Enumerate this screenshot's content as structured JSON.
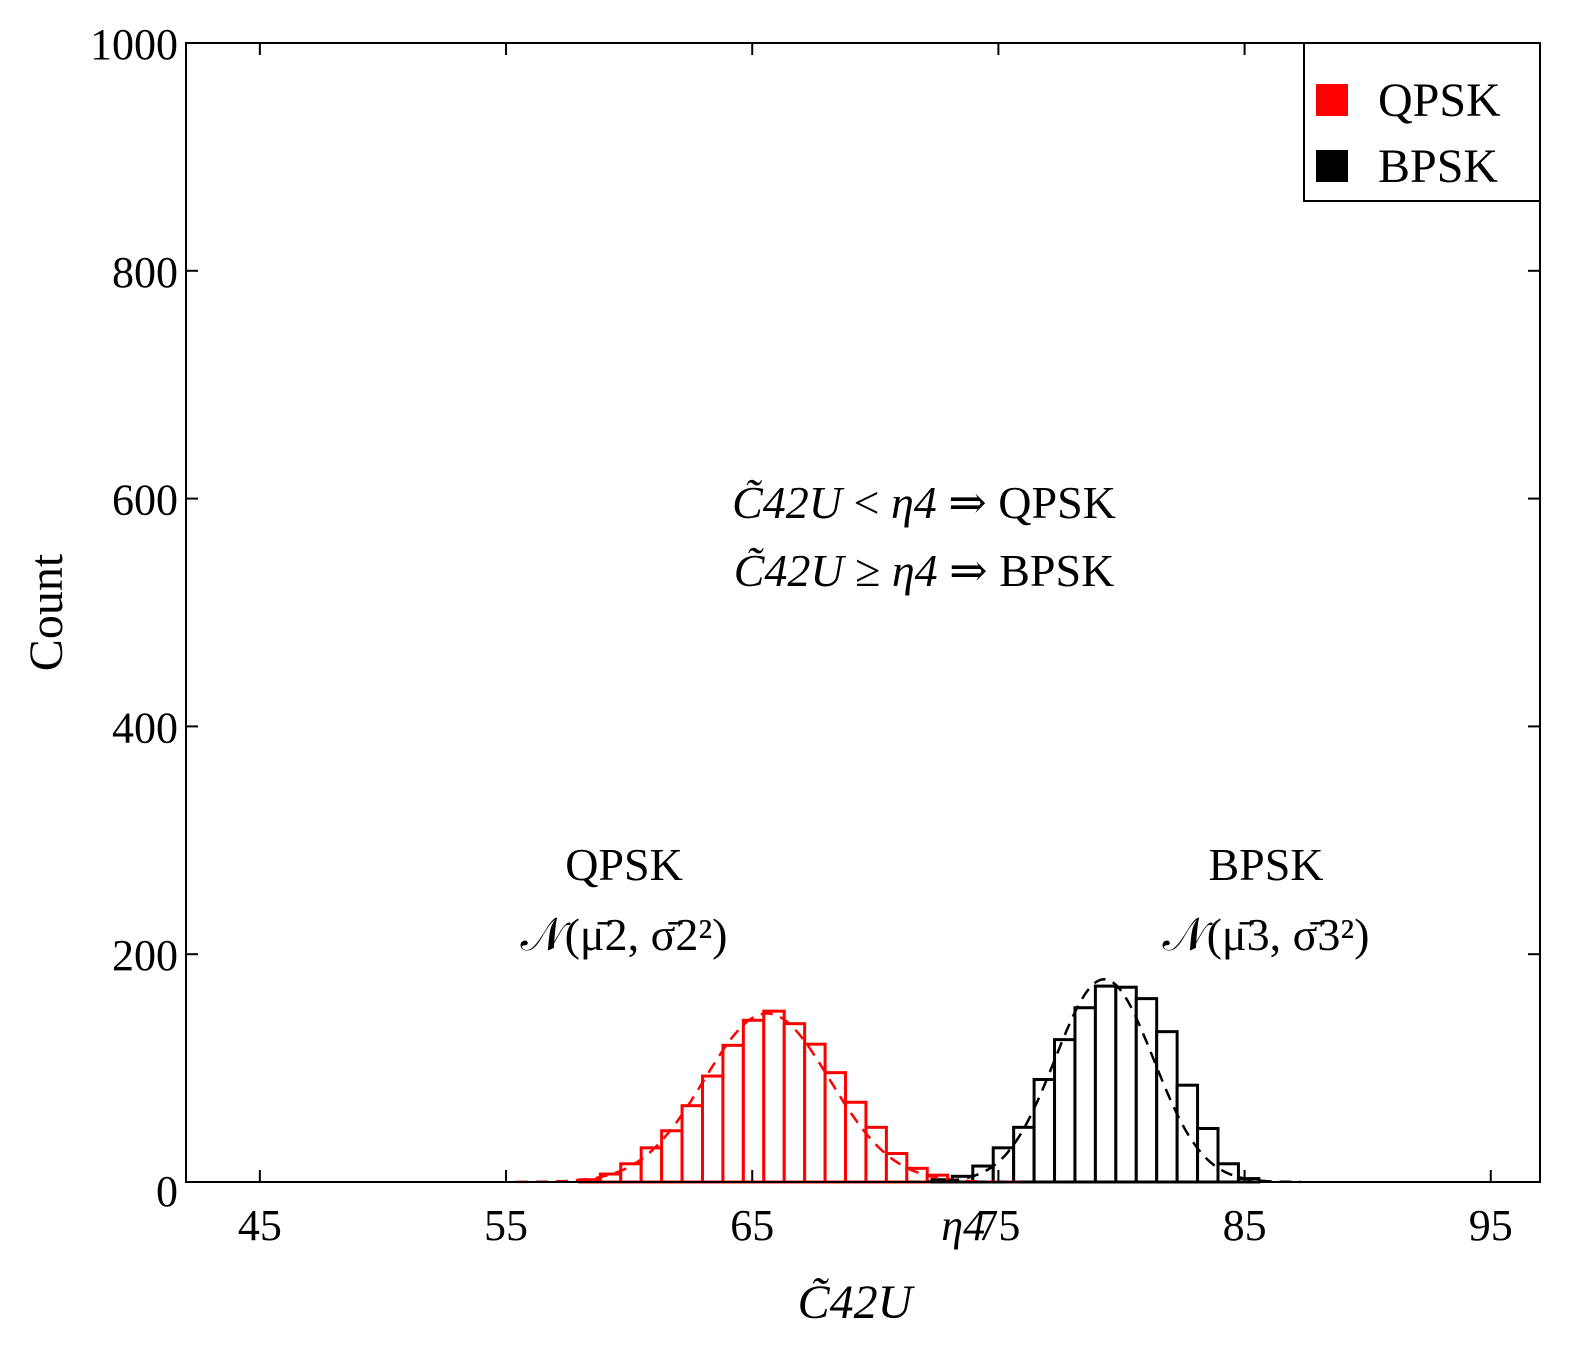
{
  "chart_data": {
    "type": "bar",
    "title": "",
    "xlabel": "C̃42U",
    "ylabel": "Count",
    "xlim": [
      42,
      97
    ],
    "ylim": [
      0,
      1000
    ],
    "x_ticks": [
      "45",
      "55",
      "65",
      "75",
      "85",
      "95"
    ],
    "x_tick_values": [
      45,
      55,
      65,
      75,
      85,
      95
    ],
    "y_ticks": [
      "0",
      "200",
      "400",
      "600",
      "800",
      "1000"
    ],
    "y_tick_values": [
      0,
      200,
      400,
      600,
      800,
      1000
    ],
    "threshold": {
      "label": "η4",
      "value": 73
    },
    "bin_width": 0.83,
    "series": [
      {
        "name": "QPSK",
        "color": "#ff0000",
        "fit_label": "𝒩(μ̄2, σ̄2²)",
        "mean": 65.6,
        "std": 2.55,
        "fit_peak": 148,
        "bin_starts": [
          58.0,
          58.83,
          59.66,
          60.49,
          61.32,
          62.15,
          62.98,
          63.81,
          64.64,
          65.47,
          66.3,
          67.13,
          67.96,
          68.79,
          69.62,
          70.45,
          71.28,
          72.11,
          72.94
        ],
        "values": [
          2,
          7,
          16,
          30,
          45,
          67,
          93,
          120,
          142,
          150,
          139,
          121,
          96,
          70,
          48,
          25,
          12,
          6,
          2
        ]
      },
      {
        "name": "BPSK",
        "color": "#000000",
        "fit_label": "𝒩(μ̄3, σ̄3²)",
        "mean": 79.3,
        "std": 2.0,
        "fit_peak": 178,
        "bin_starts": [
          72.3,
          73.13,
          73.96,
          74.79,
          75.62,
          76.45,
          77.28,
          78.11,
          78.94,
          79.77,
          80.6,
          81.43,
          82.26,
          83.09,
          83.92,
          84.75
        ],
        "values": [
          2,
          5,
          14,
          30,
          48,
          90,
          125,
          153,
          172,
          171,
          161,
          132,
          85,
          47,
          16,
          3
        ]
      }
    ],
    "legend": {
      "position": "top-right",
      "entries": [
        "QPSK",
        "BPSK"
      ]
    },
    "annotations": {
      "rule1_rel": "<",
      "rule1_result": "QPSK",
      "rule2_rel": "≥",
      "rule2_result": "BPSK",
      "implies": "⇒"
    }
  }
}
